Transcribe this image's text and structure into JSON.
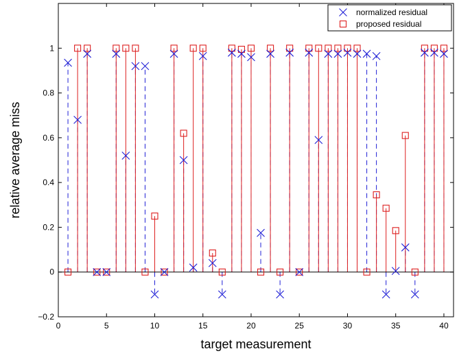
{
  "chart_data": {
    "type": "scatter",
    "title": "",
    "xlabel": "target measurement",
    "ylabel": "relative average miss",
    "xlim": [
      0,
      41
    ],
    "ylim": [
      -0.2,
      1.2
    ],
    "xticks": [
      0,
      5,
      10,
      15,
      20,
      25,
      30,
      35,
      40
    ],
    "yticks": [
      -0.2,
      0,
      0.2,
      0.4,
      0.6,
      0.8,
      1
    ],
    "ytick_labels": [
      "−0.2",
      "0",
      "0.2",
      "0.4",
      "0.6",
      "0.8",
      "1"
    ],
    "grid": false,
    "legend_position": "top-right",
    "baseline": 0,
    "x": [
      1,
      2,
      3,
      4,
      5,
      6,
      7,
      8,
      9,
      10,
      11,
      12,
      13,
      14,
      15,
      16,
      17,
      18,
      19,
      20,
      21,
      22,
      23,
      24,
      25,
      26,
      27,
      28,
      29,
      30,
      31,
      32,
      33,
      34,
      35,
      36,
      37,
      38,
      39,
      40
    ],
    "series": [
      {
        "name": "normalized residual",
        "marker": "x",
        "line": "dashed stem",
        "color": "#1f1fd6",
        "values": [
          0.935,
          0.68,
          0.975,
          0,
          0,
          0.975,
          0.52,
          0.92,
          0.92,
          -0.1,
          0,
          0.975,
          0.5,
          0.02,
          0.965,
          0.04,
          -0.1,
          0.98,
          0.975,
          0.96,
          0.175,
          0.975,
          -0.1,
          0.98,
          0,
          0.98,
          0.59,
          0.975,
          0.975,
          0.98,
          0.975,
          0.975,
          0.965,
          -0.1,
          0.005,
          0.11,
          -0.1,
          0.98,
          0.98,
          0.975
        ]
      },
      {
        "name": "proposed residual",
        "marker": "square",
        "line": "solid stem",
        "color": "#dd1e1e",
        "values": [
          0,
          1,
          1,
          0,
          0,
          1,
          1,
          1,
          0,
          0.25,
          0,
          1,
          0.62,
          1,
          1,
          0.085,
          0,
          1,
          0.995,
          1,
          0,
          1,
          0,
          1,
          0,
          1,
          1,
          1,
          1,
          1,
          1,
          0,
          0.345,
          0.285,
          0.185,
          0.61,
          0,
          1,
          1,
          1
        ]
      }
    ]
  }
}
